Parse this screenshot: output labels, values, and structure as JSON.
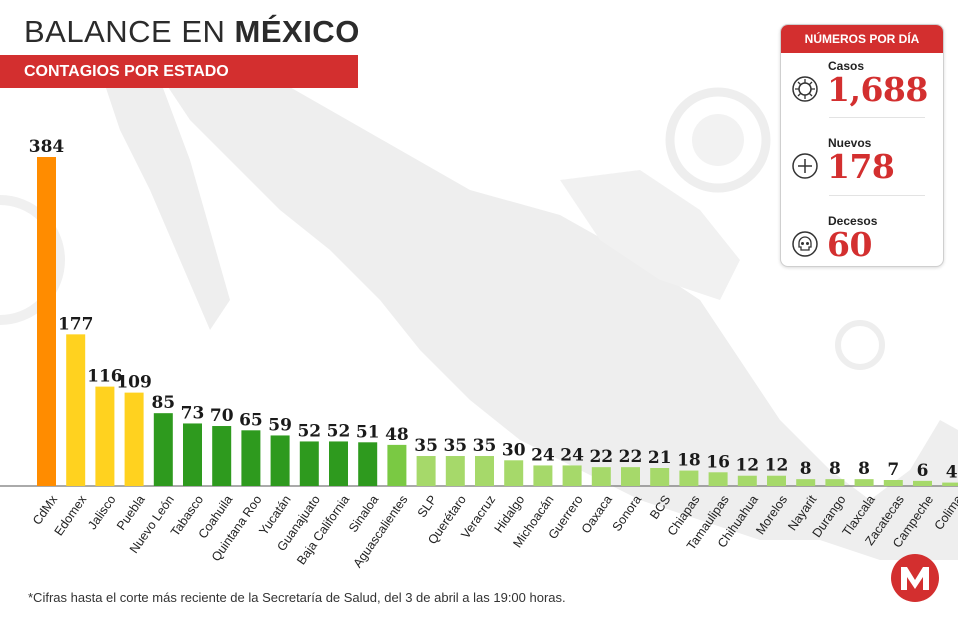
{
  "header": {
    "title_part1": "BALANCE EN ",
    "title_part2": "MÉXICO",
    "subtitle": "CONTAGIOS POR ESTADO"
  },
  "stats": {
    "header": "NÚMEROS POR DÍA",
    "items": [
      {
        "label": "Casos",
        "value": "1,688",
        "icon": "virus-icon"
      },
      {
        "label": "Nuevos",
        "value": "178",
        "icon": "plus-circle-icon"
      },
      {
        "label": "Decesos",
        "value": "60",
        "icon": "skull-icon"
      }
    ]
  },
  "footnote": "*Cifras hasta el corte más reciente de la Secretaría de Salud, del 3 de abril a las 19:00 horas.",
  "colors": {
    "accent_red": "#d32f2f",
    "orange": "#ff8c00",
    "yellow": "#ffd21f",
    "dark_green": "#2e9a1e",
    "mid_green": "#7ac943",
    "light_green": "#a6d96a",
    "map_gray": "#ededed"
  },
  "chart_data": {
    "type": "bar",
    "categories": [
      "CdMx",
      "Edomex",
      "Jalisco",
      "Puebla",
      "Nuevo León",
      "Tabasco",
      "Coahuila",
      "Quintana Roo",
      "Yucatán",
      "Guanajuato",
      "Baja California",
      "Sinaloa",
      "Aguascalientes",
      "SLP",
      "Querétaro",
      "Veracruz",
      "Hidalgo",
      "Michoacán",
      "Guerrero",
      "Oaxaca",
      "Sonora",
      "BCS",
      "Chiapas",
      "Tamaulipas",
      "Chihuahua",
      "Morelos",
      "Nayarit",
      "Durango",
      "Tlaxcala",
      "Zacatecas",
      "Campeche",
      "Colima"
    ],
    "values": [
      384,
      177,
      116,
      109,
      85,
      73,
      70,
      65,
      59,
      52,
      52,
      51,
      48,
      35,
      35,
      35,
      30,
      24,
      24,
      22,
      22,
      21,
      18,
      16,
      12,
      12,
      8,
      8,
      8,
      7,
      6,
      4
    ],
    "bar_colors": [
      "#ff8c00",
      "#ffd21f",
      "#ffd21f",
      "#ffd21f",
      "#2e9a1e",
      "#2e9a1e",
      "#2e9a1e",
      "#2e9a1e",
      "#2e9a1e",
      "#2e9a1e",
      "#2e9a1e",
      "#2e9a1e",
      "#7ac943",
      "#a6d96a",
      "#a6d96a",
      "#a6d96a",
      "#a6d96a",
      "#a6d96a",
      "#a6d96a",
      "#a6d96a",
      "#a6d96a",
      "#a6d96a",
      "#a6d96a",
      "#a6d96a",
      "#a6d96a",
      "#a6d96a",
      "#a6d96a",
      "#a6d96a",
      "#a6d96a",
      "#a6d96a",
      "#a6d96a",
      "#a6d96a"
    ],
    "ylim": [
      0,
      384
    ],
    "grid": false,
    "legend": "none"
  }
}
